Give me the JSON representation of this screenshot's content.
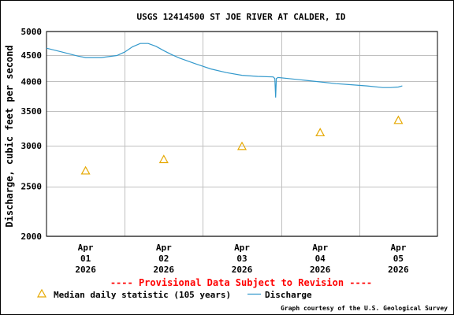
{
  "chart_data": {
    "type": "line",
    "title": "USGS 12414500 ST JOE RIVER AT CALDER, ID",
    "ylabel": "Discharge, cubic feet per second",
    "xlabel": "",
    "y_scale": "log",
    "ylim": [
      2000,
      5000
    ],
    "yticks": [
      2000,
      2500,
      3000,
      3500,
      4000,
      4500,
      5000
    ],
    "x_tick_labels": [
      {
        "month": "Apr",
        "day": "01",
        "year": "2026"
      },
      {
        "month": "Apr",
        "day": "02",
        "year": "2026"
      },
      {
        "month": "Apr",
        "day": "03",
        "year": "2026"
      },
      {
        "month": "Apr",
        "day": "04",
        "year": "2026"
      },
      {
        "month": "Apr",
        "day": "05",
        "year": "2026"
      }
    ],
    "xlim_days": [
      -0.5,
      4.5
    ],
    "grid": true,
    "series": [
      {
        "name": "Discharge",
        "color": "#3399cc",
        "kind": "line",
        "x": [
          -0.5,
          -0.3,
          -0.1,
          0.0,
          0.2,
          0.4,
          0.5,
          0.6,
          0.7,
          0.8,
          0.9,
          1.0,
          1.1,
          1.2,
          1.4,
          1.6,
          1.8,
          2.0,
          2.2,
          2.4,
          2.42,
          2.43,
          2.44,
          2.46,
          2.6,
          2.8,
          3.0,
          3.2,
          3.4,
          3.6,
          3.8,
          3.9,
          4.0,
          4.05
        ],
        "y": [
          4640,
          4560,
          4480,
          4450,
          4450,
          4490,
          4560,
          4670,
          4740,
          4740,
          4680,
          4590,
          4510,
          4440,
          4330,
          4230,
          4160,
          4110,
          4090,
          4080,
          4050,
          3720,
          4050,
          4070,
          4050,
          4020,
          3990,
          3960,
          3940,
          3920,
          3890,
          3890,
          3900,
          3920
        ]
      },
      {
        "name": "Median daily statistic (105 years)",
        "color": "#e6a800",
        "kind": "triangle",
        "x": [
          0,
          1,
          2,
          3,
          4
        ],
        "y": [
          2680,
          2820,
          2990,
          3180,
          3360
        ]
      }
    ],
    "legend": {
      "placement": "bottom-left",
      "entries": [
        {
          "label": "Median daily statistic (105 years)",
          "marker": "triangle",
          "color": "#e6a800"
        },
        {
          "label": "Discharge",
          "marker": "line",
          "color": "#3399cc"
        }
      ]
    }
  },
  "provisional_notice": "---- Provisional Data Subject to Revision ----",
  "credit": "Graph courtesy of the U.S. Geological Survey",
  "colors": {
    "grid": "#c0c0c0",
    "notice": "#ff0000",
    "discharge": "#3399cc",
    "median": "#e6a800"
  }
}
